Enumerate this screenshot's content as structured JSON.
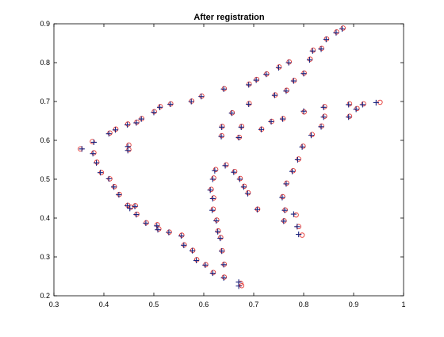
{
  "chart_data": {
    "type": "scatter",
    "title": "After registration",
    "xlabel": "",
    "ylabel": "",
    "xlim": [
      0.3,
      1.0
    ],
    "ylim": [
      0.2,
      0.9
    ],
    "xticks": [
      0.3,
      0.4,
      0.5,
      0.6,
      0.7,
      0.8,
      0.9,
      1.0
    ],
    "xtick_labels": [
      "0.3",
      "0.4",
      "0.5",
      "0.6",
      "0.7",
      "0.8",
      "0.9",
      "1"
    ],
    "yticks": [
      0.2,
      0.3,
      0.4,
      0.5,
      0.6,
      0.7,
      0.8,
      0.9
    ],
    "ytick_labels": [
      "0.2",
      "0.3",
      "0.4",
      "0.5",
      "0.6",
      "0.7",
      "0.8",
      "0.9"
    ],
    "grid": false,
    "colors": {
      "plus_marker": "#1a237e",
      "circle_marker": "#e53935",
      "axes": "#000000"
    },
    "series": [
      {
        "marker": "plus",
        "points": [
          [
            0.356,
            0.578
          ],
          [
            0.38,
            0.595
          ],
          [
            0.378,
            0.566
          ],
          [
            0.385,
            0.542
          ],
          [
            0.393,
            0.517
          ],
          [
            0.41,
            0.501
          ],
          [
            0.42,
            0.48
          ],
          [
            0.43,
            0.46
          ],
          [
            0.447,
            0.432
          ],
          [
            0.452,
            0.425
          ],
          [
            0.462,
            0.43
          ],
          [
            0.465,
            0.409
          ],
          [
            0.484,
            0.387
          ],
          [
            0.506,
            0.38
          ],
          [
            0.508,
            0.37
          ],
          [
            0.53,
            0.363
          ],
          [
            0.555,
            0.354
          ],
          [
            0.56,
            0.33
          ],
          [
            0.577,
            0.316
          ],
          [
            0.585,
            0.291
          ],
          [
            0.603,
            0.279
          ],
          [
            0.618,
            0.258
          ],
          [
            0.64,
            0.246
          ],
          [
            0.64,
            0.28
          ],
          [
            0.636,
            0.315
          ],
          [
            0.633,
            0.348
          ],
          [
            0.628,
            0.365
          ],
          [
            0.625,
            0.393
          ],
          [
            0.617,
            0.42
          ],
          [
            0.618,
            0.45
          ],
          [
            0.613,
            0.472
          ],
          [
            0.618,
            0.5
          ],
          [
            0.622,
            0.522
          ],
          [
            0.643,
            0.535
          ],
          [
            0.66,
            0.518
          ],
          [
            0.672,
            0.5
          ],
          [
            0.68,
            0.48
          ],
          [
            0.688,
            0.463
          ],
          [
            0.707,
            0.422
          ],
          [
            0.76,
            0.392
          ],
          [
            0.762,
            0.42
          ],
          [
            0.757,
            0.453
          ],
          [
            0.765,
            0.488
          ],
          [
            0.777,
            0.52
          ],
          [
            0.788,
            0.55
          ],
          [
            0.797,
            0.583
          ],
          [
            0.815,
            0.613
          ],
          [
            0.835,
            0.635
          ],
          [
            0.84,
            0.66
          ],
          [
            0.89,
            0.66
          ],
          [
            0.905,
            0.68
          ],
          [
            0.918,
            0.692
          ],
          [
            0.945,
            0.697
          ],
          [
            0.89,
            0.692
          ],
          [
            0.84,
            0.685
          ],
          [
            0.8,
            0.675
          ],
          [
            0.78,
            0.41
          ],
          [
            0.787,
            0.378
          ],
          [
            0.79,
            0.358
          ],
          [
            0.67,
            0.235
          ],
          [
            0.67,
            0.225
          ],
          [
            0.448,
            0.574
          ],
          [
            0.448,
            0.584
          ],
          [
            0.447,
            0.64
          ],
          [
            0.465,
            0.645
          ],
          [
            0.475,
            0.655
          ],
          [
            0.5,
            0.672
          ],
          [
            0.512,
            0.685
          ],
          [
            0.533,
            0.693
          ],
          [
            0.575,
            0.7
          ],
          [
            0.595,
            0.713
          ],
          [
            0.64,
            0.732
          ],
          [
            0.41,
            0.617
          ],
          [
            0.423,
            0.627
          ],
          [
            0.635,
            0.61
          ],
          [
            0.636,
            0.634
          ],
          [
            0.656,
            0.67
          ],
          [
            0.67,
            0.607
          ],
          [
            0.675,
            0.634
          ],
          [
            0.715,
            0.628
          ],
          [
            0.735,
            0.648
          ],
          [
            0.758,
            0.655
          ],
          [
            0.69,
            0.693
          ],
          [
            0.742,
            0.716
          ],
          [
            0.765,
            0.727
          ],
          [
            0.78,
            0.753
          ],
          [
            0.8,
            0.772
          ],
          [
            0.69,
            0.743
          ],
          [
            0.705,
            0.755
          ],
          [
            0.725,
            0.77
          ],
          [
            0.75,
            0.787
          ],
          [
            0.77,
            0.8
          ],
          [
            0.812,
            0.807
          ],
          [
            0.818,
            0.83
          ],
          [
            0.835,
            0.835
          ],
          [
            0.845,
            0.86
          ],
          [
            0.865,
            0.877
          ],
          [
            0.877,
            0.887
          ]
        ]
      },
      {
        "marker": "circle",
        "points": [
          [
            0.353,
            0.578
          ],
          [
            0.377,
            0.597
          ],
          [
            0.38,
            0.568
          ],
          [
            0.386,
            0.544
          ],
          [
            0.395,
            0.517
          ],
          [
            0.412,
            0.501
          ],
          [
            0.421,
            0.481
          ],
          [
            0.431,
            0.461
          ],
          [
            0.448,
            0.433
          ],
          [
            0.454,
            0.428
          ],
          [
            0.463,
            0.432
          ],
          [
            0.466,
            0.41
          ],
          [
            0.485,
            0.388
          ],
          [
            0.507,
            0.383
          ],
          [
            0.51,
            0.372
          ],
          [
            0.531,
            0.364
          ],
          [
            0.556,
            0.356
          ],
          [
            0.561,
            0.331
          ],
          [
            0.578,
            0.317
          ],
          [
            0.586,
            0.293
          ],
          [
            0.604,
            0.28
          ],
          [
            0.619,
            0.26
          ],
          [
            0.641,
            0.248
          ],
          [
            0.641,
            0.281
          ],
          [
            0.637,
            0.316
          ],
          [
            0.634,
            0.35
          ],
          [
            0.629,
            0.367
          ],
          [
            0.626,
            0.395
          ],
          [
            0.619,
            0.423
          ],
          [
            0.62,
            0.452
          ],
          [
            0.615,
            0.474
          ],
          [
            0.62,
            0.503
          ],
          [
            0.624,
            0.525
          ],
          [
            0.645,
            0.537
          ],
          [
            0.662,
            0.52
          ],
          [
            0.673,
            0.502
          ],
          [
            0.681,
            0.482
          ],
          [
            0.689,
            0.465
          ],
          [
            0.708,
            0.423
          ],
          [
            0.761,
            0.393
          ],
          [
            0.763,
            0.421
          ],
          [
            0.758,
            0.455
          ],
          [
            0.766,
            0.49
          ],
          [
            0.779,
            0.522
          ],
          [
            0.79,
            0.552
          ],
          [
            0.799,
            0.585
          ],
          [
            0.817,
            0.615
          ],
          [
            0.836,
            0.637
          ],
          [
            0.842,
            0.662
          ],
          [
            0.892,
            0.662
          ],
          [
            0.907,
            0.682
          ],
          [
            0.92,
            0.694
          ],
          [
            0.953,
            0.698
          ],
          [
            0.892,
            0.694
          ],
          [
            0.842,
            0.687
          ],
          [
            0.801,
            0.673
          ],
          [
            0.785,
            0.408
          ],
          [
            0.79,
            0.378
          ],
          [
            0.797,
            0.356
          ],
          [
            0.674,
            0.232
          ],
          [
            0.676,
            0.226
          ],
          [
            0.45,
            0.576
          ],
          [
            0.45,
            0.588
          ],
          [
            0.448,
            0.642
          ],
          [
            0.466,
            0.647
          ],
          [
            0.476,
            0.656
          ],
          [
            0.501,
            0.674
          ],
          [
            0.513,
            0.687
          ],
          [
            0.534,
            0.694
          ],
          [
            0.576,
            0.701
          ],
          [
            0.596,
            0.714
          ],
          [
            0.641,
            0.733
          ],
          [
            0.412,
            0.619
          ],
          [
            0.424,
            0.629
          ],
          [
            0.636,
            0.612
          ],
          [
            0.637,
            0.636
          ],
          [
            0.657,
            0.671
          ],
          [
            0.671,
            0.608
          ],
          [
            0.676,
            0.636
          ],
          [
            0.716,
            0.629
          ],
          [
            0.736,
            0.649
          ],
          [
            0.759,
            0.656
          ],
          [
            0.691,
            0.695
          ],
          [
            0.743,
            0.717
          ],
          [
            0.766,
            0.729
          ],
          [
            0.781,
            0.754
          ],
          [
            0.801,
            0.773
          ],
          [
            0.691,
            0.745
          ],
          [
            0.706,
            0.757
          ],
          [
            0.726,
            0.771
          ],
          [
            0.751,
            0.789
          ],
          [
            0.771,
            0.802
          ],
          [
            0.813,
            0.809
          ],
          [
            0.819,
            0.832
          ],
          [
            0.836,
            0.837
          ],
          [
            0.846,
            0.861
          ],
          [
            0.866,
            0.879
          ],
          [
            0.879,
            0.889
          ]
        ]
      }
    ]
  }
}
